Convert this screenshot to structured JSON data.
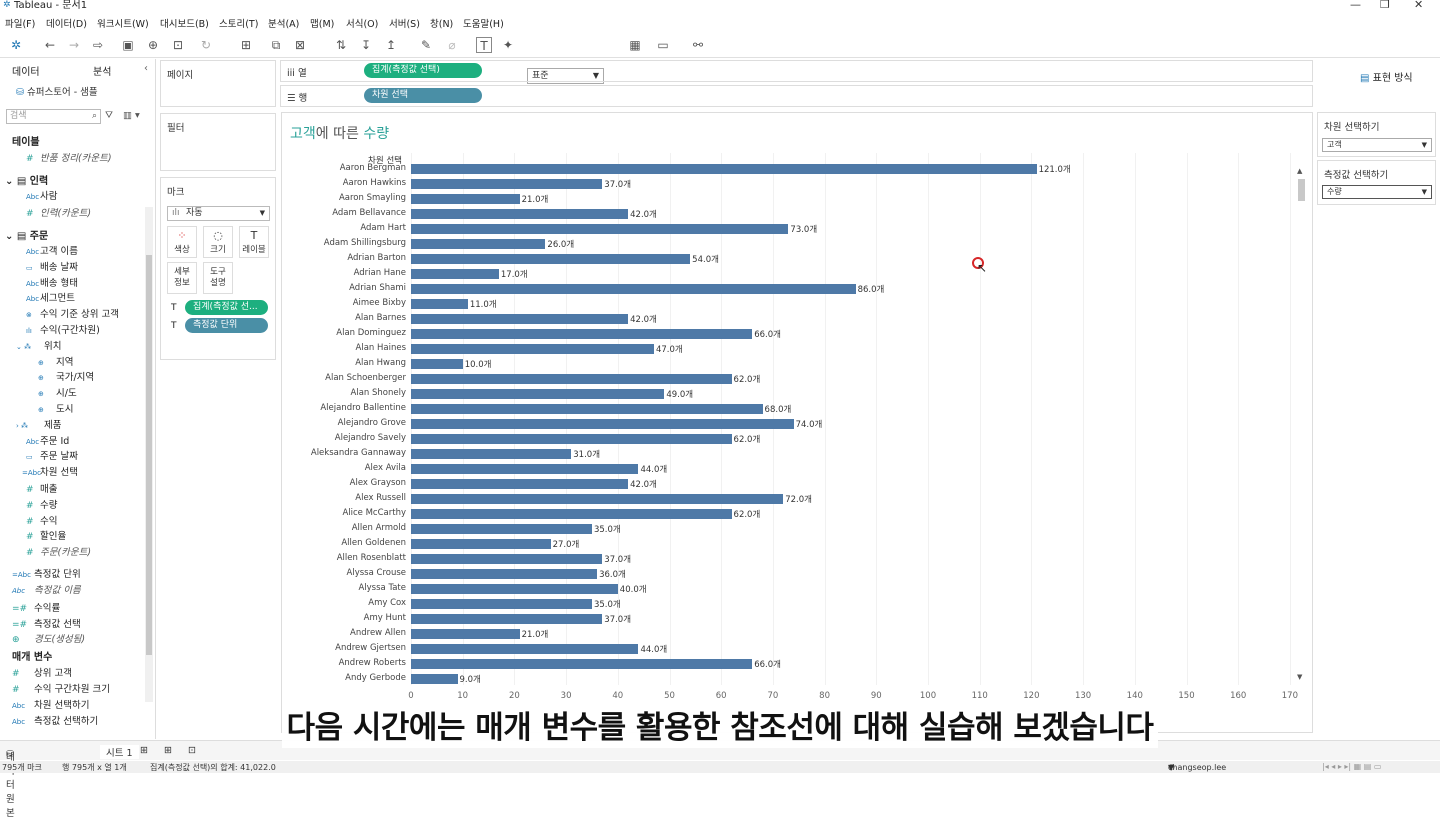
{
  "app": {
    "title": "Tableau - 문서1",
    "logo": "tableau-logo-icon"
  },
  "menu": [
    "파일(F)",
    "데이터(D)",
    "워크시트(W)",
    "대시보드(B)",
    "스토리(T)",
    "분석(A)",
    "맵(M)",
    "서식(O)",
    "서버(S)",
    "창(N)",
    "도움말(H)"
  ],
  "toolbar": {
    "fit_select": "표준",
    "show_me": "표현 방식"
  },
  "data_pane": {
    "tab_data": "데이터",
    "tab_analysis": "분석",
    "datasource": "슈퍼스토어 - 샘플",
    "search_placeholder": "검색",
    "groups": {
      "tables": "테이블",
      "returns_count": "반품 정리(카운트)",
      "people": "인력",
      "person": "사람",
      "people_count": "인력(카운트)",
      "orders": "주문",
      "customer_name": "고객 이름",
      "ship_date": "배송 날짜",
      "ship_mode": "배송 형태",
      "segment": "세그먼트",
      "top_customers": "수익 기준 상위 고객",
      "profit_bin": "수익(구간차원)",
      "location": "위치",
      "region": "지역",
      "country": "국가/지역",
      "state": "시/도",
      "city": "도시",
      "product": "제품",
      "order_id": "주문 Id",
      "order_date": "주문 날짜",
      "dim_select": "차원 선택",
      "sales": "매출",
      "quantity": "수량",
      "profit": "수익",
      "discount": "할인율",
      "orders_count": "주문(카운트)",
      "measure_unit": "측정값 단위",
      "measure_names": "측정값 이름",
      "profit_ratio": "수익률",
      "measure_select": "측정값 선택",
      "longitude": "경도(생성됨)",
      "parameters": "매개 변수",
      "top_customers_param": "상위 고객",
      "profit_bin_size": "수익 구간차원 크기",
      "dim_select_param": "차원 선택하기",
      "measure_select_param": "측정값 선택하기"
    }
  },
  "shelves": {
    "pages": "페이지",
    "filters": "필터",
    "marks": "마크",
    "marks_type": "자동",
    "columns_label": "열",
    "rows_label": "행",
    "columns_pill": "집계(측정값 선택)",
    "rows_pill": "차원 선택",
    "mark_buttons": {
      "color": "색상",
      "size": "크기",
      "label": "레이블",
      "detail": "세부\n정보",
      "tooltip": "도구\n설명"
    },
    "mark_pills": [
      "집계(측정값 선...",
      "측정값 단위"
    ]
  },
  "view": {
    "title_prefix": "고객",
    "title_mid": "에 따른 ",
    "title_suffix": "수량",
    "row_header": "차원 선택"
  },
  "right_pane": {
    "dim_title": "차원 선택하기",
    "dim_value": "고객",
    "measure_title": "측정값 선택하기",
    "measure_value": "수량"
  },
  "chart_data": {
    "type": "bar",
    "orientation": "horizontal",
    "title": "고객에 따른 수량",
    "ylabel": "차원 선택",
    "xlim": [
      0,
      175
    ],
    "x_ticks": [
      0,
      10,
      20,
      30,
      40,
      50,
      60,
      70,
      80,
      90,
      100,
      110,
      120,
      130,
      140,
      150,
      160,
      170
    ],
    "grid": true,
    "label_suffix": "개",
    "categories": [
      "Aaron Bergman",
      "Aaron Hawkins",
      "Aaron Smayling",
      "Adam Bellavance",
      "Adam Hart",
      "Adam Shillingsburg",
      "Adrian Barton",
      "Adrian Hane",
      "Adrian Shami",
      "Aimee Bixby",
      "Alan Barnes",
      "Alan Dominguez",
      "Alan Haines",
      "Alan Hwang",
      "Alan Schoenberger",
      "Alan Shonely",
      "Alejandro Ballentine",
      "Alejandro Grove",
      "Alejandro Savely",
      "Aleksandra Gannaway",
      "Alex Avila",
      "Alex Grayson",
      "Alex Russell",
      "Alice McCarthy",
      "Allen Armold",
      "Allen Goldenen",
      "Allen Rosenblatt",
      "Alyssa Crouse",
      "Alyssa Tate",
      "Amy Cox",
      "Amy Hunt",
      "Andrew Allen",
      "Andrew Gjertsen",
      "Andrew Roberts",
      "Andy Gerbode"
    ],
    "values": [
      121,
      37,
      21,
      42,
      73,
      26,
      54,
      17,
      86,
      11,
      42,
      66,
      47,
      10,
      62,
      49,
      68,
      74,
      62,
      31,
      44,
      42,
      72,
      62,
      35,
      27,
      37,
      36,
      40,
      35,
      37,
      21,
      44,
      66,
      9
    ]
  },
  "tabs": {
    "datasource": "데이터 원본",
    "sheet1": "시트 1"
  },
  "status": {
    "marks": "795개 마크",
    "rows_cols": "행 795개 x 열 1개",
    "sum": "집계(측정값 선택)의 합계: 41,022.0",
    "user": "changseop.lee"
  },
  "subtitle": "다음 시간에는 매개 변수를 활용한 참조선에 대해 실습해 보겠습니다"
}
